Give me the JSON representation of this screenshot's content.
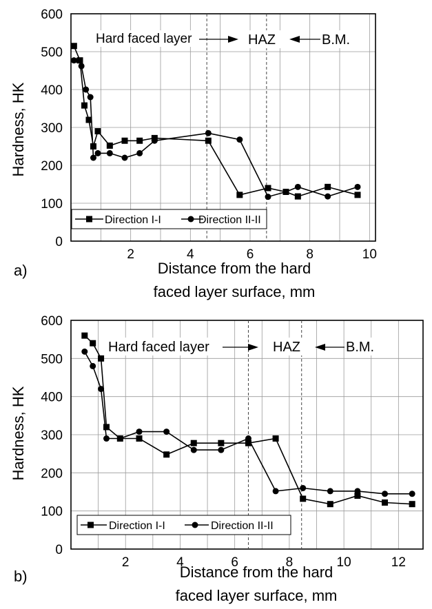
{
  "chart_data": [
    {
      "panel": "a)",
      "type": "line",
      "xlabel": "Distance from the hard faced layer surface, mm",
      "xlabel_lines": [
        "Distance from the hard",
        "faced layer surface, mm"
      ],
      "ylabel": "Hardness, HK",
      "xlim": [
        0,
        10.2
      ],
      "ylim": [
        0,
        600
      ],
      "xticks": [
        "2",
        "4",
        "6",
        "8",
        "10"
      ],
      "xtick_values": [
        2,
        4,
        6,
        8,
        10
      ],
      "xtick_minor": [
        "1",
        "2",
        "3",
        "4",
        "5",
        "6",
        "7",
        "8",
        "9",
        "10"
      ],
      "yticks": [
        "0",
        "100",
        "200",
        "300",
        "400",
        "500",
        "600"
      ],
      "grid": true,
      "legend_position": "bottom",
      "region_labels": {
        "hard_faced": "Hard faced layer",
        "haz": "HAZ",
        "bm": "B.M."
      },
      "boundaries": [
        4.55,
        6.55
      ],
      "series": [
        {
          "name": "Direction I-I",
          "marker": "square",
          "x": [
            0.1,
            0.3,
            0.45,
            0.6,
            0.75,
            0.9,
            1.3,
            1.8,
            2.3,
            2.8,
            4.6,
            5.65,
            6.6,
            7.2,
            7.6,
            8.6,
            9.6
          ],
          "y": [
            515,
            477,
            358,
            320,
            250,
            290,
            252,
            265,
            265,
            272,
            265,
            122,
            140,
            130,
            118,
            143,
            122
          ]
        },
        {
          "name": "Direction II-II",
          "marker": "circle",
          "x": [
            0.1,
            0.25,
            0.35,
            0.5,
            0.65,
            0.75,
            0.9,
            1.3,
            1.8,
            2.3,
            2.8,
            4.6,
            5.65,
            6.6,
            7.2,
            7.6,
            8.6,
            9.6
          ],
          "y": [
            477,
            477,
            462,
            400,
            380,
            220,
            232,
            232,
            220,
            232,
            265,
            285,
            268,
            117,
            130,
            143,
            118,
            143
          ]
        }
      ]
    },
    {
      "panel": "b)",
      "type": "line",
      "xlabel": "Distance from the hard faced layer surface, mm",
      "xlabel_lines": [
        "Distance from the hard",
        "faced layer surface, mm"
      ],
      "ylabel": "Hardness, HK",
      "xlim": [
        0,
        12.9
      ],
      "ylim": [
        0,
        600
      ],
      "xticks": [
        "2",
        "4",
        "6",
        "8",
        "10",
        "12"
      ],
      "xtick_values": [
        2,
        4,
        6,
        8,
        10,
        12
      ],
      "xtick_minor": [
        "1",
        "2",
        "3",
        "4",
        "5",
        "6",
        "7",
        "8",
        "9",
        "10",
        "11",
        "12"
      ],
      "yticks": [
        "0",
        "100",
        "200",
        "300",
        "400",
        "500",
        "600"
      ],
      "grid": true,
      "legend_position": "bottom",
      "region_labels": {
        "hard_faced": "Hard faced layer",
        "haz": "HAZ",
        "bm": "B.M."
      },
      "boundaries": [
        6.5,
        8.45
      ],
      "series": [
        {
          "name": "Direction I-I",
          "marker": "square",
          "x": [
            0.5,
            0.8,
            1.1,
            1.3,
            1.8,
            2.5,
            3.5,
            4.5,
            5.5,
            6.5,
            7.5,
            8.5,
            9.5,
            10.5,
            11.5,
            12.5
          ],
          "y": [
            560,
            540,
            500,
            320,
            290,
            290,
            248,
            278,
            278,
            278,
            290,
            132,
            118,
            140,
            122,
            118
          ]
        },
        {
          "name": "Direction II-II",
          "marker": "circle",
          "x": [
            0.5,
            0.8,
            1.1,
            1.3,
            1.8,
            2.5,
            3.5,
            4.5,
            5.5,
            6.5,
            7.5,
            8.5,
            9.5,
            10.5,
            11.5,
            12.5
          ],
          "y": [
            518,
            480,
            420,
            290,
            290,
            308,
            308,
            260,
            260,
            290,
            152,
            160,
            152,
            152,
            145,
            145
          ]
        }
      ]
    }
  ]
}
